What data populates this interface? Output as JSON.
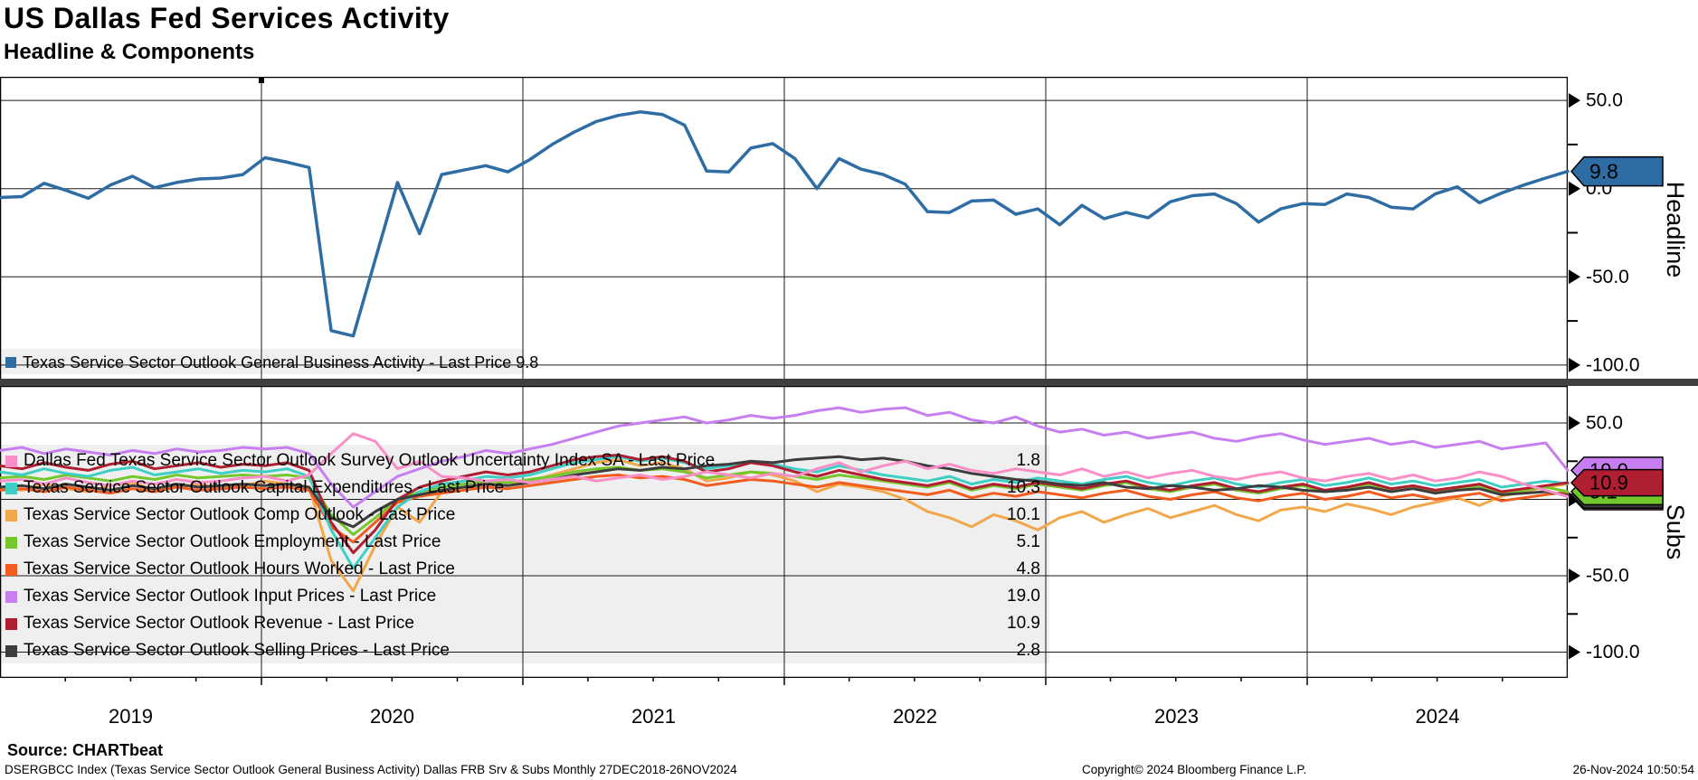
{
  "header": {
    "title": "US Dallas Fed Services Activity",
    "subtitle": "Headline & Components"
  },
  "footer": {
    "source": "Source: CHARTbeat",
    "description": "DSERGBCC Index (Texas Service Sector Outlook General Business Activity) Dallas FRB Srv & Subs  Monthly 27DEC2018-26NOV2024",
    "copyright": "Copyright© 2024 Bloomberg Finance L.P.",
    "timestamp": "26-Nov-2024 10:50:54"
  },
  "chart_data": {
    "type": "line",
    "frequency": "Monthly",
    "x_start": "Dec 2018",
    "x_end": "Nov 2024",
    "x_year_labels": [
      "2019",
      "2020",
      "2021",
      "2022",
      "2023",
      "2024"
    ],
    "grid": true,
    "legend_position": "overlay-left",
    "panels": [
      {
        "name": "Headline",
        "ylim": [
          -110,
          63
        ],
        "axis_major_ticks": [
          {
            "value": 50,
            "label": "50.0"
          },
          {
            "value": 0,
            "label": "0.0"
          },
          {
            "value": -50,
            "label": "-50.0"
          },
          {
            "value": -100,
            "label": "-100.0"
          }
        ],
        "axis_minor_ticks": [
          25,
          -25,
          -75
        ],
        "series": [
          {
            "name": "general-business-activity",
            "legend_label": "Texas Service Sector Outlook General Business Activity - Last Price",
            "last_price": "9.8",
            "color": "#2e6da4",
            "badge_text_color": "#ffffff",
            "badge_visible": true,
            "values": [
              -5,
              -4.5,
              3,
              -1,
              -5.5,
              2,
              7,
              0.5,
              3.5,
              5.5,
              6,
              8,
              17.5,
              15,
              12,
              -80.5,
              -83.5,
              -40,
              3.5,
              -25.5,
              8,
              10.5,
              13,
              9.5,
              16.5,
              25,
              32,
              38,
              41.5,
              43.5,
              42,
              36,
              10,
              9.5,
              23,
              25.5,
              17,
              0,
              17,
              11,
              8,
              2.5,
              -13,
              -13.5,
              -7,
              -6.5,
              -14.5,
              -11.5,
              -20.5,
              -9.5,
              -17,
              -13.5,
              -16.5,
              -7.5,
              -4,
              -3,
              -8.5,
              -19,
              -11.5,
              -8.5,
              -9,
              -3,
              -5,
              -10.5,
              -11.5,
              -3,
              1,
              -8,
              -2.5,
              2,
              6,
              9.8
            ]
          }
        ]
      },
      {
        "name": "Subs",
        "ylim": [
          -117,
          74
        ],
        "axis_major_ticks": [
          {
            "value": 50,
            "label": "50.0"
          },
          {
            "value": 0,
            "label": "0.0"
          },
          {
            "value": -50,
            "label": "-50.0"
          },
          {
            "value": -100,
            "label": "-100.0"
          }
        ],
        "axis_minor_ticks": [
          25,
          -25,
          -75
        ],
        "series": [
          {
            "name": "outlook-uncertainty",
            "legend_label": "Dallas Fed Texas Service Sector Outlook Survey Outlook Uncertainty Index SA - Last Price",
            "last_price": "1.8",
            "color": "#fa8fc8",
            "badge_text_color": "#000000",
            "badge_visible": true,
            "values": [
              12,
              13,
              10,
              14,
              11,
              9,
              12,
              10,
              13,
              11,
              12,
              14,
              15,
              12,
              16,
              30,
              43,
              38,
              20,
              25,
              15,
              14,
              12,
              13,
              11,
              13,
              15,
              12,
              14,
              16,
              13,
              15,
              18,
              16,
              14,
              17,
              15,
              20,
              24,
              18,
              22,
              25,
              20,
              23,
              19,
              17,
              20,
              18,
              16,
              20,
              15,
              18,
              14,
              17,
              19,
              15,
              13,
              16,
              18,
              14,
              12,
              15,
              17,
              13,
              16,
              12,
              14,
              18,
              15,
              10,
              6,
              1.8
            ]
          },
          {
            "name": "capital-expenditures",
            "legend_label": "Texas Service Sector Outlook Capital Expenditures - Last Price",
            "last_price": "10.3",
            "color": "#3ecfc4",
            "badge_text_color": "#000000",
            "badge_visible": false,
            "values": [
              18,
              16,
              20,
              17,
              15,
              19,
              21,
              16,
              18,
              20,
              17,
              19,
              18,
              20,
              15,
              -20,
              -45,
              -25,
              -5,
              5,
              10,
              12,
              15,
              14,
              16,
              20,
              24,
              26,
              28,
              25,
              27,
              24,
              20,
              22,
              25,
              23,
              20,
              18,
              22,
              19,
              16,
              14,
              12,
              15,
              10,
              13,
              11,
              14,
              12,
              10,
              13,
              15,
              11,
              9,
              12,
              14,
              10,
              8,
              11,
              13,
              9,
              11,
              14,
              10,
              12,
              9,
              11,
              13,
              8,
              10,
              12,
              10.3
            ]
          },
          {
            "name": "comp-outlook",
            "legend_label": "Texas Service Sector Outlook Comp Outlook - Last Price",
            "last_price": "10.1",
            "color": "#f2a74a",
            "badge_text_color": "#000000",
            "badge_visible": false,
            "values": [
              8,
              6,
              10,
              7,
              5,
              9,
              11,
              6,
              8,
              10,
              7,
              9,
              12,
              10,
              8,
              -40,
              -60,
              -30,
              -5,
              -15,
              5,
              8,
              10,
              9,
              12,
              16,
              20,
              24,
              26,
              22,
              24,
              20,
              12,
              14,
              18,
              16,
              12,
              5,
              10,
              8,
              5,
              0,
              -8,
              -12,
              -18,
              -10,
              -14,
              -20,
              -12,
              -8,
              -15,
              -10,
              -6,
              -12,
              -8,
              -4,
              -10,
              -14,
              -7,
              -5,
              -8,
              -3,
              -6,
              -10,
              -5,
              -2,
              1,
              -4,
              2,
              5,
              8,
              10.1
            ]
          },
          {
            "name": "employment",
            "legend_label": "Texas Service Sector Outlook Employment - Last Price",
            "last_price": "5.1",
            "color": "#74c82c",
            "badge_text_color": "#000000",
            "badge_visible": true,
            "values": [
              14,
              15,
              13,
              16,
              14,
              12,
              15,
              13,
              16,
              14,
              15,
              16,
              15,
              16,
              14,
              -10,
              -23,
              -12,
              0,
              5,
              8,
              10,
              12,
              11,
              13,
              15,
              18,
              20,
              21,
              19,
              20,
              18,
              14,
              16,
              18,
              17,
              15,
              13,
              16,
              14,
              12,
              10,
              8,
              11,
              6,
              9,
              7,
              10,
              8,
              6,
              9,
              11,
              7,
              5,
              8,
              10,
              6,
              4,
              7,
              9,
              5,
              7,
              10,
              6,
              8,
              5,
              7,
              9,
              4,
              6,
              8,
              5.1
            ]
          },
          {
            "name": "hours-worked",
            "legend_label": "Texas Service Sector Outlook Hours Worked - Last Price",
            "last_price": "4.8",
            "color": "#f25c1e",
            "badge_text_color": "#000000",
            "badge_visible": false,
            "values": [
              6,
              7,
              5,
              8,
              6,
              4,
              7,
              5,
              8,
              6,
              7,
              8,
              7,
              8,
              6,
              -18,
              -28,
              -15,
              -2,
              2,
              4,
              6,
              8,
              7,
              9,
              11,
              13,
              15,
              16,
              14,
              15,
              13,
              9,
              11,
              13,
              12,
              10,
              8,
              11,
              9,
              7,
              5,
              3,
              6,
              1,
              4,
              2,
              5,
              3,
              1,
              4,
              6,
              2,
              0,
              3,
              5,
              1,
              -1,
              2,
              4,
              0,
              2,
              5,
              1,
              3,
              0,
              2,
              4,
              -1,
              1,
              3,
              4.8
            ]
          },
          {
            "name": "input-prices",
            "legend_label": "Texas Service Sector Outlook Input Prices - Last Price",
            "last_price": "19.0",
            "color": "#c77ef0",
            "badge_text_color": "#1a1a1a",
            "badge_visible": true,
            "values": [
              32,
              34,
              30,
              33,
              31,
              29,
              32,
              30,
              33,
              31,
              32,
              34,
              33,
              34,
              30,
              10,
              -5,
              5,
              15,
              20,
              25,
              28,
              32,
              30,
              33,
              36,
              40,
              44,
              48,
              50,
              52,
              54,
              50,
              52,
              55,
              53,
              55,
              58,
              60,
              57,
              59,
              60,
              55,
              57,
              52,
              50,
              54,
              48,
              44,
              46,
              42,
              44,
              40,
              42,
              44,
              40,
              38,
              41,
              43,
              39,
              36,
              38,
              40,
              36,
              38,
              34,
              36,
              38,
              33,
              35,
              37,
              19
            ]
          },
          {
            "name": "revenue",
            "legend_label": "Texas Service Sector Outlook Revenue - Last Price",
            "last_price": "10.9",
            "color": "#b01e32",
            "badge_text_color": "#ffffff",
            "badge_visible": true,
            "values": [
              22,
              20,
              24,
              21,
              19,
              23,
              25,
              20,
              22,
              24,
              21,
              23,
              22,
              24,
              19,
              -15,
              -35,
              -20,
              0,
              8,
              12,
              15,
              18,
              16,
              18,
              22,
              26,
              28,
              29,
              26,
              28,
              25,
              18,
              20,
              24,
              22,
              18,
              15,
              19,
              16,
              13,
              11,
              9,
              12,
              7,
              10,
              8,
              11,
              9,
              7,
              10,
              12,
              8,
              6,
              9,
              11,
              7,
              5,
              8,
              10,
              6,
              8,
              11,
              7,
              9,
              6,
              8,
              10,
              5,
              7,
              9,
              10.9
            ]
          },
          {
            "name": "selling-prices",
            "legend_label": "Texas Service Sector Outlook Selling Prices - Last Price",
            "last_price": "2.8",
            "color": "#3d3d3d",
            "badge_text_color": "#ffffff",
            "badge_visible": true,
            "values": [
              8,
              9,
              7,
              10,
              8,
              6,
              9,
              7,
              10,
              8,
              9,
              10,
              9,
              10,
              8,
              -12,
              -18,
              -8,
              0,
              3,
              6,
              8,
              10,
              9,
              11,
              13,
              16,
              18,
              20,
              19,
              21,
              20,
              22,
              23,
              25,
              24,
              26,
              27,
              28,
              26,
              27,
              25,
              22,
              20,
              17,
              15,
              13,
              12,
              10,
              9,
              11,
              8,
              7,
              9,
              8,
              6,
              7,
              9,
              8,
              6,
              5,
              6,
              8,
              5,
              7,
              4,
              6,
              7,
              3,
              4,
              5,
              2.8
            ]
          }
        ]
      }
    ]
  }
}
